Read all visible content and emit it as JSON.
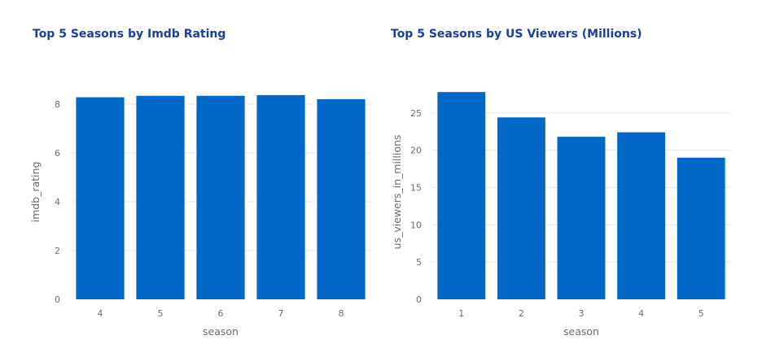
{
  "colors": {
    "bar": "#0068c9",
    "title": "#1a3f9c",
    "tick": "#6b6b6b",
    "grid": "#e6e8ee"
  },
  "chart_data": [
    {
      "type": "bar",
      "title": "Top 5 Seasons by Imdb Rating",
      "xlabel": "season",
      "ylabel": "imdb_rating",
      "categories": [
        "4",
        "5",
        "6",
        "7",
        "8"
      ],
      "values": [
        8.28,
        8.34,
        8.34,
        8.37,
        8.2
      ],
      "ylim": [
        0,
        8.8
      ],
      "yticks": [
        0,
        2,
        4,
        6,
        8
      ],
      "grid": true,
      "legend": "none"
    },
    {
      "type": "bar",
      "title": "Top 5 Seasons by US Viewers (Millions)",
      "xlabel": "season",
      "ylabel": "us_viewers_in_millions",
      "categories": [
        "1",
        "2",
        "3",
        "4",
        "5"
      ],
      "values": [
        27.8,
        24.4,
        21.8,
        22.4,
        19
      ],
      "ylim": [
        0,
        28.8
      ],
      "yticks": [
        0,
        5,
        10,
        15,
        20,
        25
      ],
      "grid": true,
      "legend": "none"
    }
  ]
}
